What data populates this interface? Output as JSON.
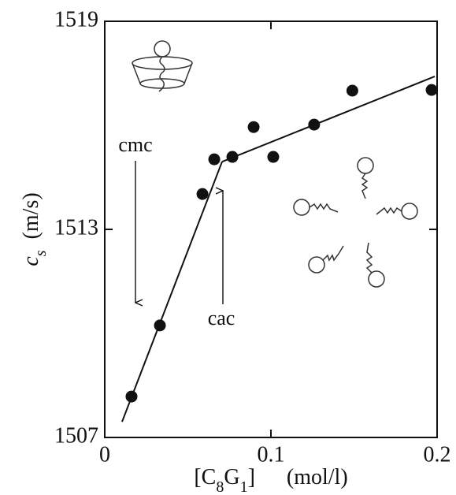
{
  "chart_data": {
    "type": "scatter",
    "xlabel": [
      {
        "text": "[C"
      },
      {
        "text": "8",
        "sub": true
      },
      {
        "text": "G"
      },
      {
        "text": "1",
        "sub": true
      },
      {
        "text": "]"
      },
      {
        "text": "(mol/l)",
        "gap": true
      }
    ],
    "ylabel": {
      "symbol": "c",
      "subscript": "s",
      "unit": "(m/s)"
    },
    "xlim": [
      0,
      0.2
    ],
    "ylim": [
      1507,
      1519
    ],
    "xticks": [
      0,
      0.1,
      0.2
    ],
    "yticks": [
      1507,
      1513,
      1519
    ],
    "color": "#111",
    "points": {
      "x": [
        0.0161,
        0.0332,
        0.0588,
        0.0659,
        0.0768,
        0.0896,
        0.1014,
        0.126,
        0.149,
        0.1967
      ],
      "y": [
        1508.18,
        1510.23,
        1514.02,
        1515.02,
        1515.09,
        1515.95,
        1515.09,
        1516.02,
        1517.0,
        1517.02
      ]
    },
    "fit_lines": [
      {
        "x": [
          0.0104,
          0.0706
        ],
        "y": [
          1507.45,
          1514.95
        ]
      },
      {
        "x": [
          0.0706,
          0.1986
        ],
        "y": [
          1514.95,
          1517.41
        ]
      }
    ],
    "annotations": [
      {
        "text": "cmc"
      },
      {
        "text": "cac"
      }
    ]
  }
}
